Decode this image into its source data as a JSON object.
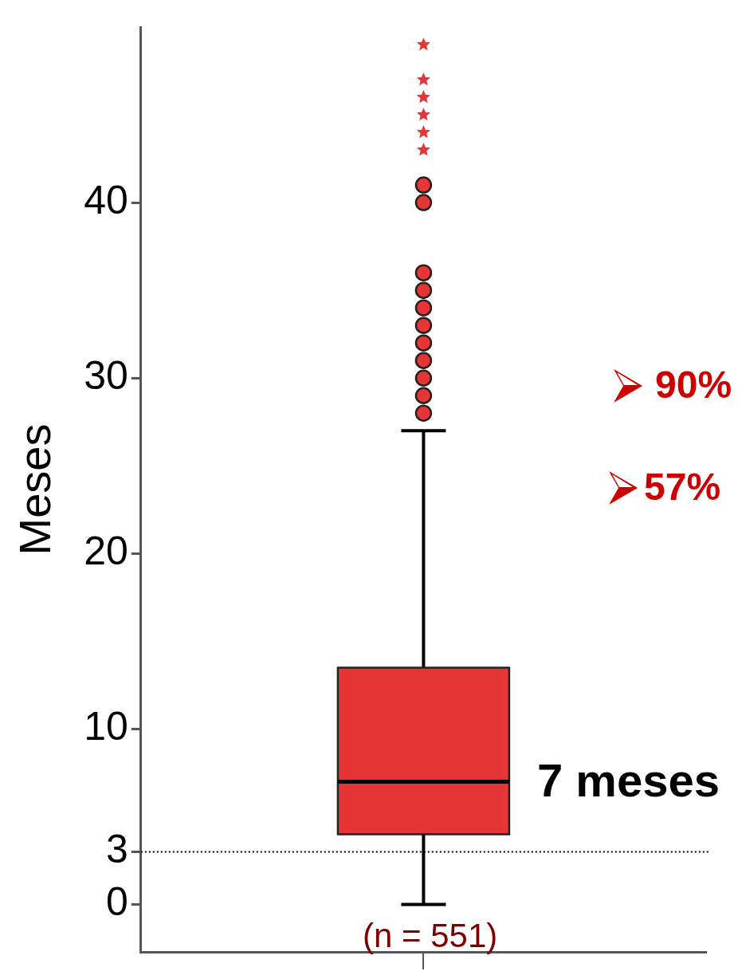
{
  "chart_data": {
    "type": "box",
    "ylabel": "Meses",
    "categories": [
      null
    ],
    "boxes": [
      {
        "low": 0,
        "q1": 4,
        "median": 7,
        "q3": 13.5,
        "high": 27,
        "outliers": [
          28,
          29,
          30,
          31,
          32,
          33,
          34,
          35,
          36,
          40,
          41,
          43,
          44,
          45,
          46,
          47,
          49
        ]
      }
    ],
    "color": "#e53535",
    "ylim": [
      -2.7,
      50
    ],
    "yticks": [
      0,
      3,
      10,
      20,
      30,
      40
    ],
    "tick_labels": "y",
    "grid": false,
    "legend": false,
    "ref_lines": [
      {
        "axis": "y",
        "value": 3,
        "line_style": "dotted",
        "color": "#000000"
      }
    ],
    "annotations": [
      "7 meses",
      "(n = 551)",
      "90%",
      "57%"
    ]
  }
}
